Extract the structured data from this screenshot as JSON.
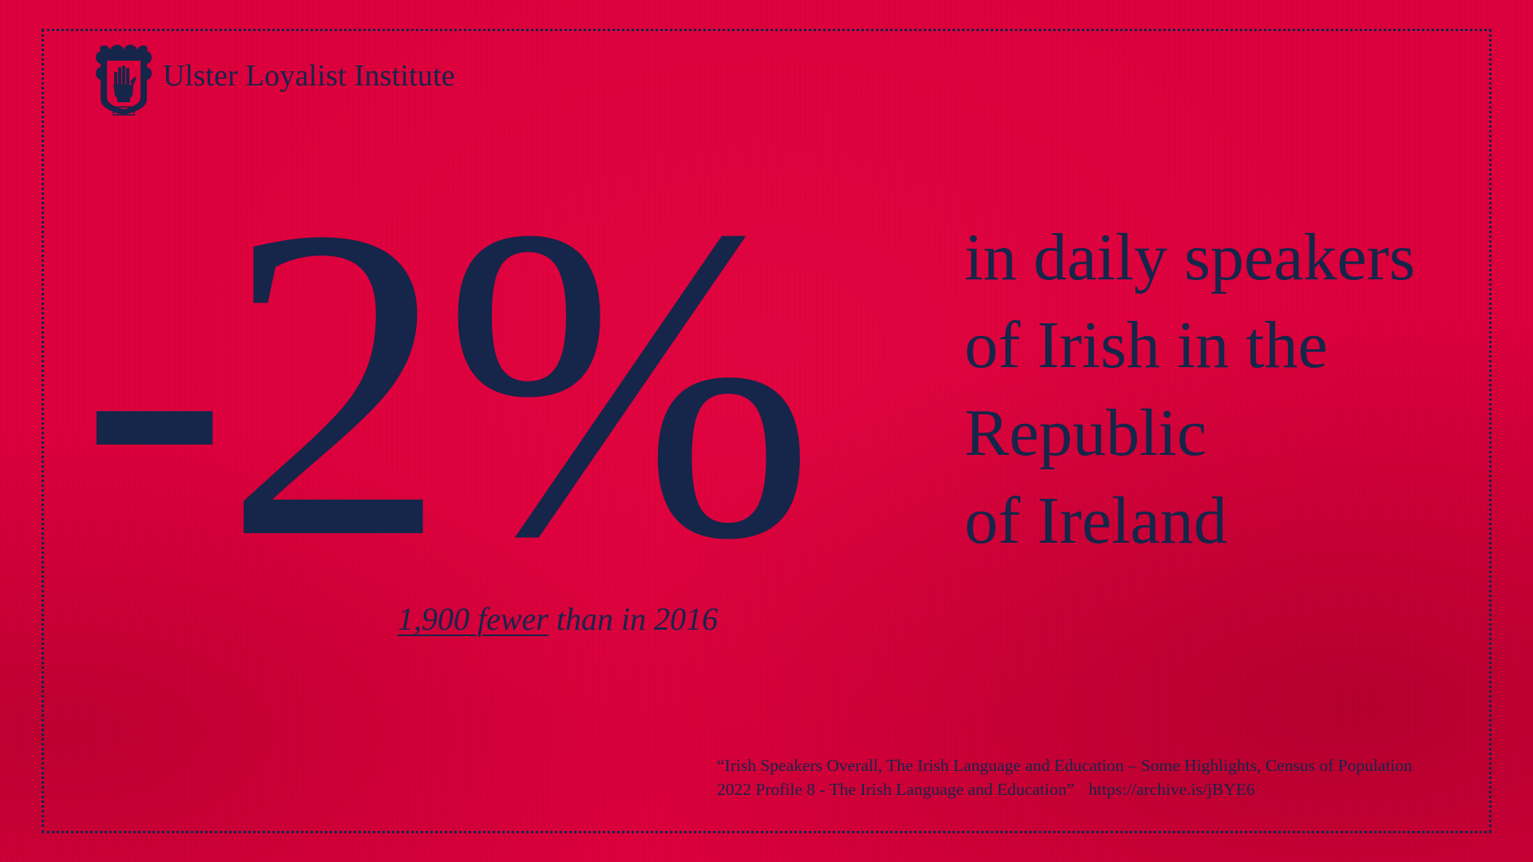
{
  "brand": {
    "name": "Ulster Loyalist Institute",
    "crest_icon": "red-hand-crest-icon",
    "crest_label": "ULI"
  },
  "headline": {
    "figure": "-2%",
    "lines": [
      "in daily speakers",
      "of Irish in the",
      "Republic",
      "of Ireland"
    ]
  },
  "note": {
    "underlined": "1,900 fewer",
    "rest": " than in 2016"
  },
  "source": {
    "citation": "“Irish Speakers Overall, The Irish Language and Education – Some Highlights, Census of Population 2022 Profile 8 - The Irish Language and Education”",
    "url": "https://archive.is/jBYE6"
  },
  "colors": {
    "background": "#dc003c",
    "ink": "#16254a"
  }
}
